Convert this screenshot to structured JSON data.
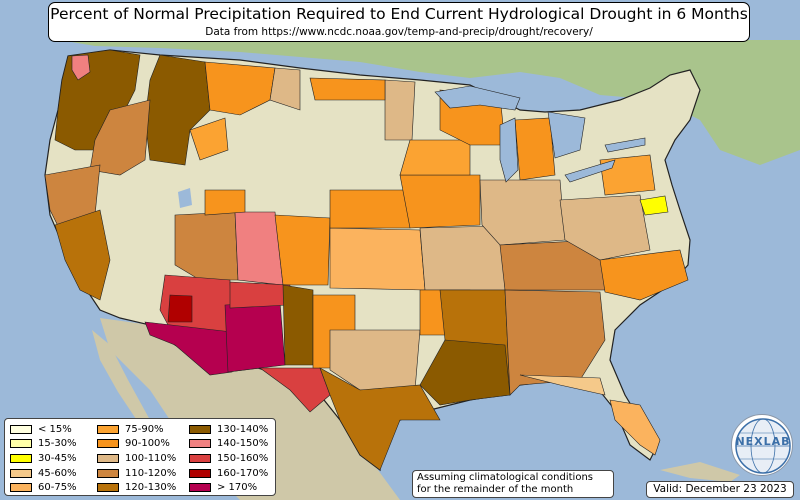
{
  "title": "Percent of Normal Precipitation Required to End Current Hydrological Drought in 6 Months",
  "subtitle": "Data from https://www.ncdc.noaa.gov/temp-and-precip/drought/recovery/",
  "legend": [
    {
      "label": "< 15%",
      "color": "#ffffe0"
    },
    {
      "label": "15-30%",
      "color": "#ffffa8"
    },
    {
      "label": "30-45%",
      "color": "#ffff00"
    },
    {
      "label": "45-60%",
      "color": "#f5c98a"
    },
    {
      "label": "60-75%",
      "color": "#fbb35e"
    },
    {
      "label": "75-90%",
      "color": "#fba332"
    },
    {
      "label": "90-100%",
      "color": "#f7941d"
    },
    {
      "label": "100-110%",
      "color": "#deb887"
    },
    {
      "label": "110-120%",
      "color": "#cd853f"
    },
    {
      "label": "120-130%",
      "color": "#b8720a"
    },
    {
      "label": "130-140%",
      "color": "#8b5a00"
    },
    {
      "label": "140-150%",
      "color": "#f08080"
    },
    {
      "label": "150-160%",
      "color": "#d94040"
    },
    {
      "label": "160-170%",
      "color": "#b00000"
    },
    {
      "label": "> 170%",
      "color": "#b5004f"
    }
  ],
  "note": {
    "line1": "Assuming climatological conditions",
    "line2": "for the remainder of the month"
  },
  "valid": "Valid: December 23 2023",
  "logo_text": "NEXLAB",
  "colors": {
    "ocean": "#9cb9d9",
    "land_neutral": "#e5e2c4",
    "mexico": "#cfc8a8",
    "canada": "#a9c48c"
  }
}
